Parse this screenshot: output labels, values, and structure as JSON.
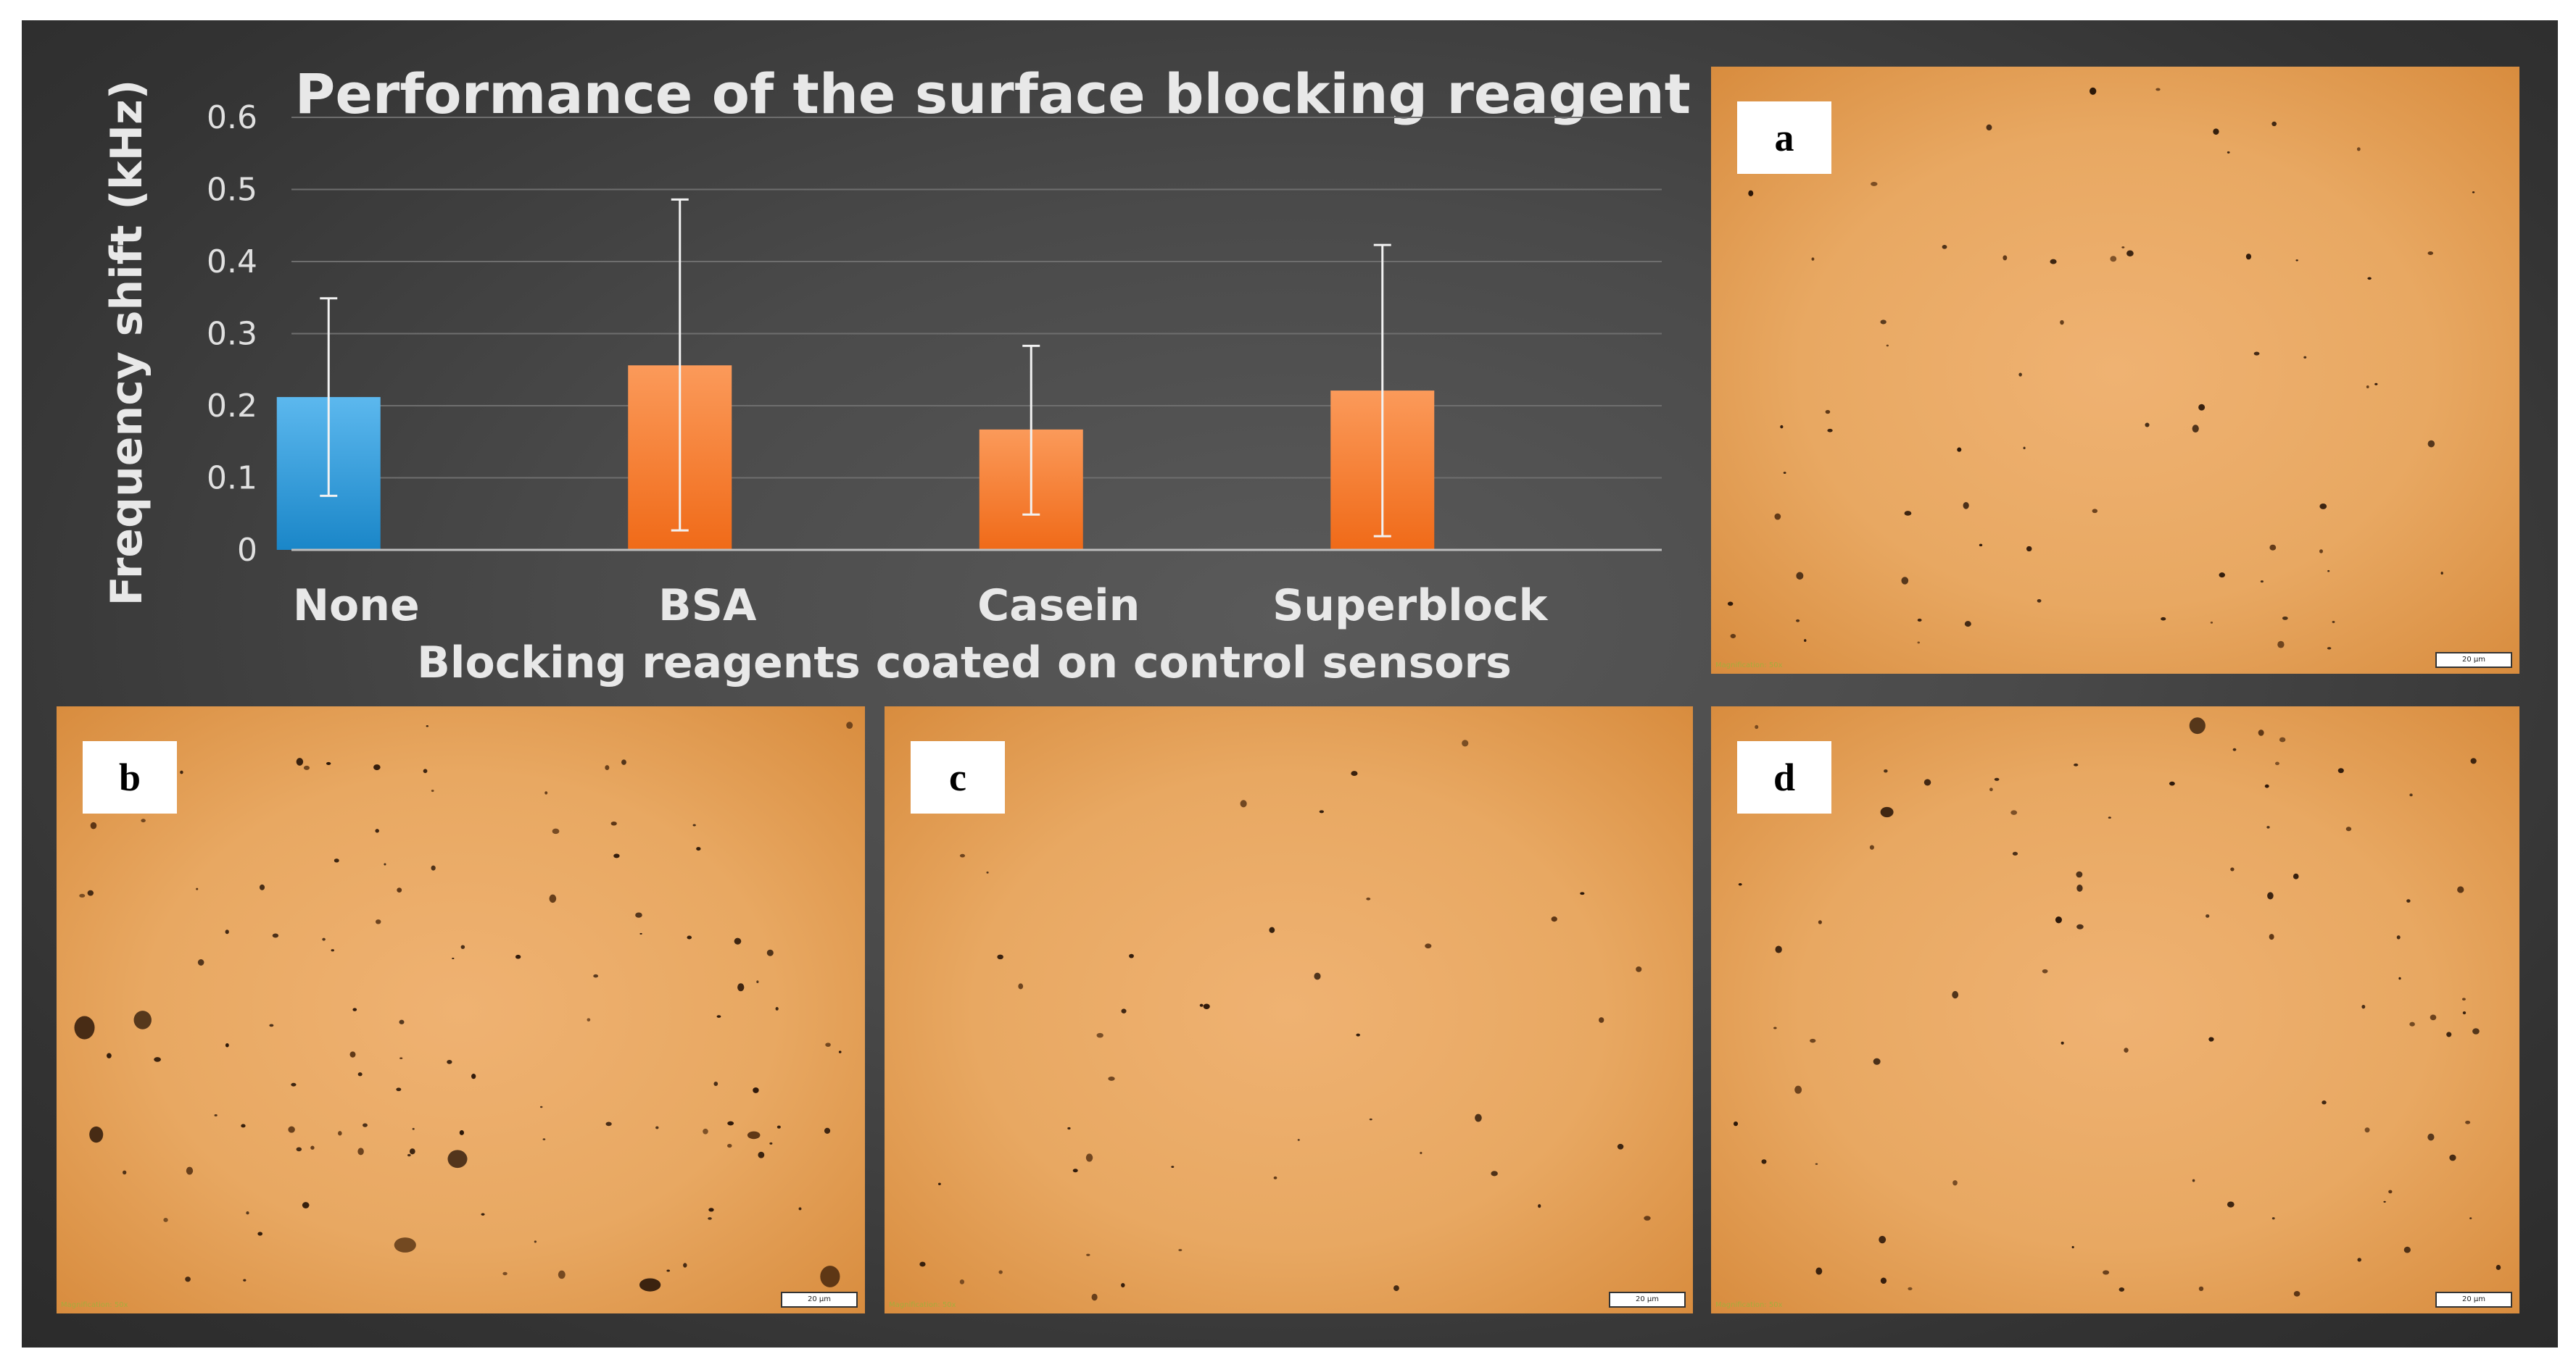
{
  "chart_data": {
    "type": "bar",
    "title": "Performance of the surface blocking reagents",
    "xlabel": "Blocking reagents coated on control sensors",
    "ylabel": "Frequency shift (kHz)",
    "ylim": [
      0,
      0.6
    ],
    "yticks": [
      "0",
      "0.1",
      "0.2",
      "0.3",
      "0.4",
      "0.5",
      "0.6"
    ],
    "categories": [
      "None",
      "BSA",
      "Casein",
      "Superblock"
    ],
    "values": [
      0.212,
      0.256,
      0.167,
      0.221
    ],
    "error_low": [
      0.075,
      0.027,
      0.049,
      0.019
    ],
    "error_high": [
      0.349,
      0.486,
      0.283,
      0.423
    ],
    "colors": [
      "#2e9ad8",
      "#f57a2c",
      "#f57a2c",
      "#f57a2c"
    ],
    "grid": true,
    "legend": "none"
  },
  "panels": [
    {
      "label": "a",
      "scale": "20 μm",
      "watermark": "Magnification: 50x"
    },
    {
      "label": "b",
      "scale": "20 μm",
      "watermark": "Magnification: 50x"
    },
    {
      "label": "c",
      "scale": "20 μm",
      "watermark": "Magnification: 50x"
    },
    {
      "label": "d",
      "scale": "20 μm",
      "watermark": "Magnification: 50x"
    }
  ]
}
